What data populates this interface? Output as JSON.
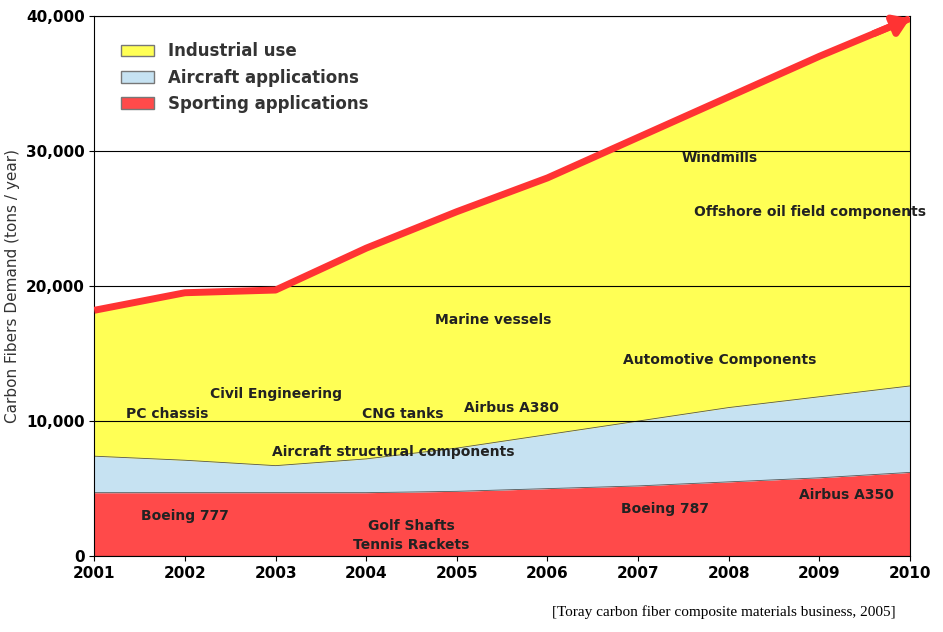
{
  "chart_data": {
    "type": "stacked_area",
    "stacked": true,
    "y_label": "Carbon Fibers Demand (tons / year)",
    "source": "[Toray carbon fiber composite materials business, 2005]",
    "x": [
      2001,
      2002,
      2003,
      2004,
      2005,
      2006,
      2007,
      2008,
      2009,
      2010
    ],
    "xlim": [
      2001,
      2010
    ],
    "xticks": [
      2001,
      2002,
      2003,
      2004,
      2005,
      2006,
      2007,
      2008,
      2009,
      2010
    ],
    "ylim": [
      0,
      40000
    ],
    "yticks": [
      0,
      {
        "value": 10000,
        "label": "10,000"
      },
      {
        "value": 20000,
        "label": "20,000"
      },
      {
        "value": 30000,
        "label": "30,000"
      },
      {
        "value": 40000,
        "label": "40,000"
      }
    ],
    "grid": "y",
    "legend": "upper left",
    "series": [
      {
        "name": "Industrial use",
        "color": "#ffff55",
        "values": [
          10800,
          12400,
          13000,
          15600,
          17500,
          19000,
          21000,
          23000,
          25200,
          27200
        ]
      },
      {
        "name": "Aircraft applications",
        "color": "#c6e2f2",
        "values": [
          2700,
          2400,
          2000,
          2500,
          3200,
          4000,
          4800,
          5500,
          6000,
          6400
        ]
      },
      {
        "name": "Sporting applications",
        "color": "#ff4a4a",
        "values": [
          4700,
          4700,
          4700,
          4700,
          4800,
          5000,
          5200,
          5500,
          5800,
          6200
        ]
      }
    ],
    "total_line_color": "#ff3333",
    "annotations": [
      "PC chassis",
      "Civil Engineering",
      "CNG tanks",
      "Marine vessels",
      "Windmills",
      "Offshore oil field components",
      "Automotive Components",
      "Airbus A380",
      "Aircraft structural components",
      "Boeing 777",
      "Golf Shafts",
      "Tennis Rackets",
      "Boeing 787",
      "Airbus A350"
    ]
  }
}
